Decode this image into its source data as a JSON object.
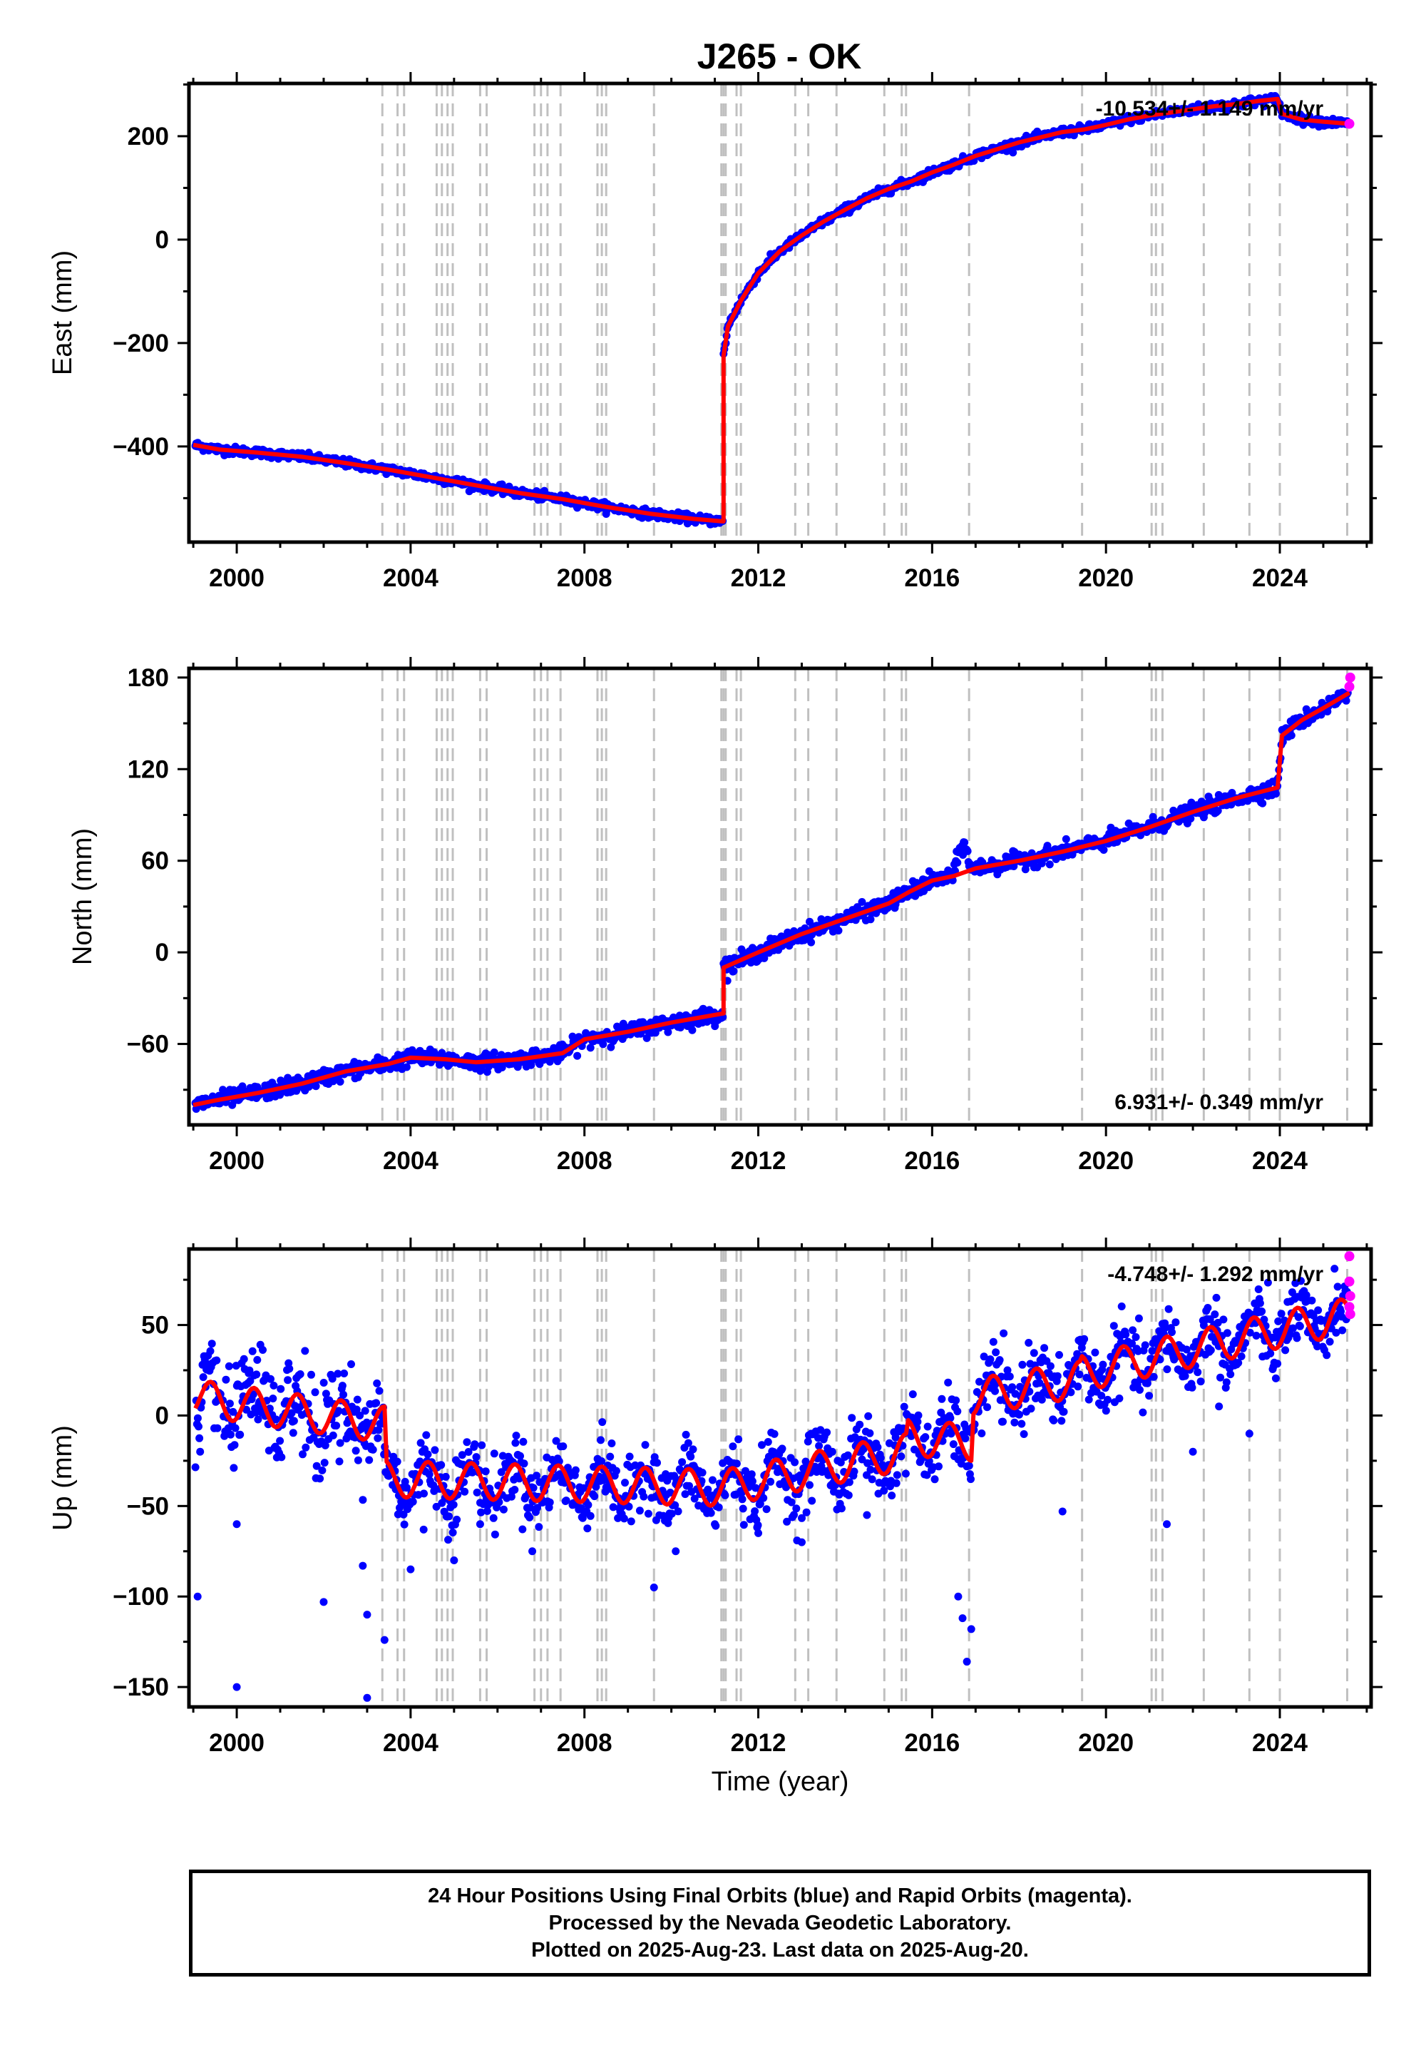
{
  "title": "J265 - OK",
  "chart_data": [
    {
      "type": "scatter",
      "name": "east",
      "ylabel": "East (mm)",
      "xlabel": "",
      "xlim": [
        1998.9,
        2026.1
      ],
      "ylim": [
        -585,
        302
      ],
      "xticks": [
        2000,
        2004,
        2008,
        2012,
        2016,
        2020,
        2024
      ],
      "yticks": [
        -400,
        -200,
        0,
        200
      ],
      "ytick_labels": [
        "−400",
        "−200",
        "0",
        "200"
      ],
      "rate_text": "-10.534+/- 1.149 mm/yr",
      "rate_position": "top-right",
      "final_orbits_color": "#0000ff",
      "rapid_orbits_color": "#ff00ff",
      "model_color": "#ff0000",
      "model": [
        [
          1999.0,
          -397
        ],
        [
          1999.6,
          -406
        ],
        [
          2000.5,
          -412
        ],
        [
          2001.5,
          -420
        ],
        [
          2002.5,
          -432
        ],
        [
          2003.5,
          -445
        ],
        [
          2004.5,
          -460
        ],
        [
          2005.5,
          -475
        ],
        [
          2006.5,
          -490
        ],
        [
          2007.5,
          -502
        ],
        [
          2008.5,
          -517
        ],
        [
          2009.5,
          -530
        ],
        [
          2010.5,
          -540
        ],
        [
          2011.2,
          -545
        ],
        [
          2011.2,
          -225
        ],
        [
          2011.3,
          -168
        ],
        [
          2011.6,
          -118
        ],
        [
          2012.0,
          -65
        ],
        [
          2012.5,
          -22
        ],
        [
          2013.0,
          8
        ],
        [
          2013.5,
          35
        ],
        [
          2014.0,
          58
        ],
        [
          2014.5,
          80
        ],
        [
          2015.0,
          98
        ],
        [
          2015.5,
          112
        ],
        [
          2016.0,
          130
        ],
        [
          2016.5,
          145
        ],
        [
          2017.0,
          162
        ],
        [
          2017.5,
          175
        ],
        [
          2018.0,
          188
        ],
        [
          2018.5,
          198
        ],
        [
          2019.0,
          208
        ],
        [
          2019.5,
          213
        ],
        [
          2020.0,
          222
        ],
        [
          2020.5,
          232
        ],
        [
          2021.0,
          240
        ],
        [
          2021.5,
          246
        ],
        [
          2022.0,
          252
        ],
        [
          2022.5,
          258
        ],
        [
          2023.0,
          262
        ],
        [
          2023.5,
          268
        ],
        [
          2023.95,
          272
        ],
        [
          2024.05,
          243
        ],
        [
          2024.5,
          232
        ],
        [
          2025.0,
          228
        ],
        [
          2025.6,
          224
        ]
      ],
      "rapid_points": [
        [
          2025.6,
          224
        ]
      ]
    },
    {
      "type": "scatter",
      "name": "north",
      "ylabel": "North (mm)",
      "xlabel": "",
      "xlim": [
        1998.9,
        2026.1
      ],
      "ylim": [
        -113,
        186
      ],
      "xticks": [
        2000,
        2004,
        2008,
        2012,
        2016,
        2020,
        2024
      ],
      "yticks": [
        -60,
        0,
        60,
        120,
        180
      ],
      "ytick_labels": [
        "−60",
        "0",
        "60",
        "120",
        "180"
      ],
      "rate_text": "6.931+/- 0.349 mm/yr",
      "rate_position": "bottom-right",
      "final_orbits_color": "#0000ff",
      "rapid_orbits_color": "#ff00ff",
      "model_color": "#ff0000",
      "model": [
        [
          1999.0,
          -100
        ],
        [
          1999.5,
          -97
        ],
        [
          2000.5,
          -92
        ],
        [
          2001.5,
          -86
        ],
        [
          2002.5,
          -78
        ],
        [
          2003.5,
          -73
        ],
        [
          2004.0,
          -69
        ],
        [
          2004.8,
          -70
        ],
        [
          2005.5,
          -72
        ],
        [
          2006.5,
          -70
        ],
        [
          2007.5,
          -66
        ],
        [
          2008.0,
          -57
        ],
        [
          2009.0,
          -52
        ],
        [
          2010.0,
          -46
        ],
        [
          2011.2,
          -40
        ],
        [
          2011.2,
          -10
        ],
        [
          2012.0,
          0
        ],
        [
          2013.0,
          12
        ],
        [
          2014.0,
          22
        ],
        [
          2015.0,
          32
        ],
        [
          2015.5,
          40
        ],
        [
          2016.0,
          47
        ],
        [
          2016.5,
          50
        ],
        [
          2017.0,
          55
        ],
        [
          2018.0,
          60
        ],
        [
          2019.0,
          66
        ],
        [
          2020.0,
          73
        ],
        [
          2021.0,
          82
        ],
        [
          2022.0,
          92
        ],
        [
          2023.0,
          101
        ],
        [
          2023.95,
          108
        ],
        [
          2024.05,
          142
        ],
        [
          2024.5,
          152
        ],
        [
          2025.0,
          160
        ],
        [
          2025.6,
          170
        ]
      ],
      "rapid_points": [
        [
          2025.6,
          174
        ],
        [
          2025.62,
          180
        ]
      ]
    },
    {
      "type": "scatter",
      "name": "up",
      "ylabel": "Up (mm)",
      "xlabel": "Time (year)",
      "xlim": [
        1998.9,
        2026.1
      ],
      "ylim": [
        -161,
        92
      ],
      "xticks": [
        2000,
        2004,
        2008,
        2012,
        2016,
        2020,
        2024
      ],
      "yticks": [
        -150,
        -100,
        -50,
        0,
        50
      ],
      "ytick_labels": [
        "−150",
        "−100",
        "−50",
        "0",
        "50"
      ],
      "rate_text": "-4.748+/- 1.292 mm/yr",
      "rate_position": "top-right",
      "final_orbits_color": "#0000ff",
      "rapid_orbits_color": "#ff00ff",
      "model_color": "#ff0000",
      "trend_up": [
        [
          1999.0,
          10
        ],
        [
          2003.4,
          -5
        ],
        [
          2003.4,
          -35
        ],
        [
          2011.2,
          -40
        ],
        [
          2015.4,
          -20
        ],
        [
          2015.4,
          -12
        ],
        [
          2016.9,
          -15
        ],
        [
          2016.9,
          10
        ],
        [
          2019.4,
          20
        ],
        [
          2019.4,
          23
        ],
        [
          2024.5,
          50
        ],
        [
          2025.6,
          55
        ]
      ],
      "outliers": [
        [
          1999.1,
          -100
        ],
        [
          2000.0,
          -150
        ],
        [
          2000.0,
          -60
        ],
        [
          2002.0,
          -103
        ],
        [
          2002.9,
          -83
        ],
        [
          2003.0,
          -110
        ],
        [
          2003.0,
          -156
        ],
        [
          2003.4,
          -124
        ],
        [
          2004.0,
          -85
        ],
        [
          2004.3,
          -63
        ],
        [
          2005.0,
          -80
        ],
        [
          2005.6,
          -60
        ],
        [
          2006.8,
          -75
        ],
        [
          2009.6,
          -95
        ],
        [
          2010.1,
          -75
        ],
        [
          2011.0,
          -60
        ],
        [
          2012.0,
          -65
        ],
        [
          2013.0,
          -70
        ],
        [
          2014.5,
          -55
        ],
        [
          2016.6,
          -100
        ],
        [
          2016.7,
          -112
        ],
        [
          2016.8,
          -136
        ],
        [
          2016.9,
          -118
        ],
        [
          2019.0,
          -53
        ],
        [
          2021.4,
          -60
        ],
        [
          2022.0,
          -20
        ],
        [
          2022.6,
          5
        ],
        [
          2023.3,
          -10
        ]
      ],
      "rapid_points": [
        [
          2025.6,
          88
        ],
        [
          2025.6,
          74
        ],
        [
          2025.62,
          66
        ],
        [
          2025.62,
          56
        ],
        [
          2025.6,
          60
        ]
      ]
    }
  ],
  "event_lines": [
    2003.35,
    2003.7,
    2003.85,
    2004.6,
    2004.72,
    2004.85,
    2004.97,
    2005.6,
    2005.75,
    2006.85,
    2007.0,
    2007.15,
    2007.45,
    2008.3,
    2008.4,
    2008.5,
    2009.6,
    2011.15,
    2011.2,
    2011.25,
    2011.5,
    2011.6,
    2012.85,
    2013.15,
    2013.8,
    2014.9,
    2015.3,
    2015.4,
    2016.85,
    2019.45,
    2021.05,
    2021.15,
    2021.3,
    2022.25,
    2023.3,
    2024.0,
    2025.55
  ],
  "event_line_color": "#c0c0c0",
  "footer": {
    "line1": "24 Hour Positions Using Final Orbits (blue) and Rapid Orbits (magenta).",
    "line2": "Processed by the Nevada Geodetic Laboratory.",
    "line3": "Plotted on 2025-Aug-23. Last data on 2025-Aug-20."
  }
}
